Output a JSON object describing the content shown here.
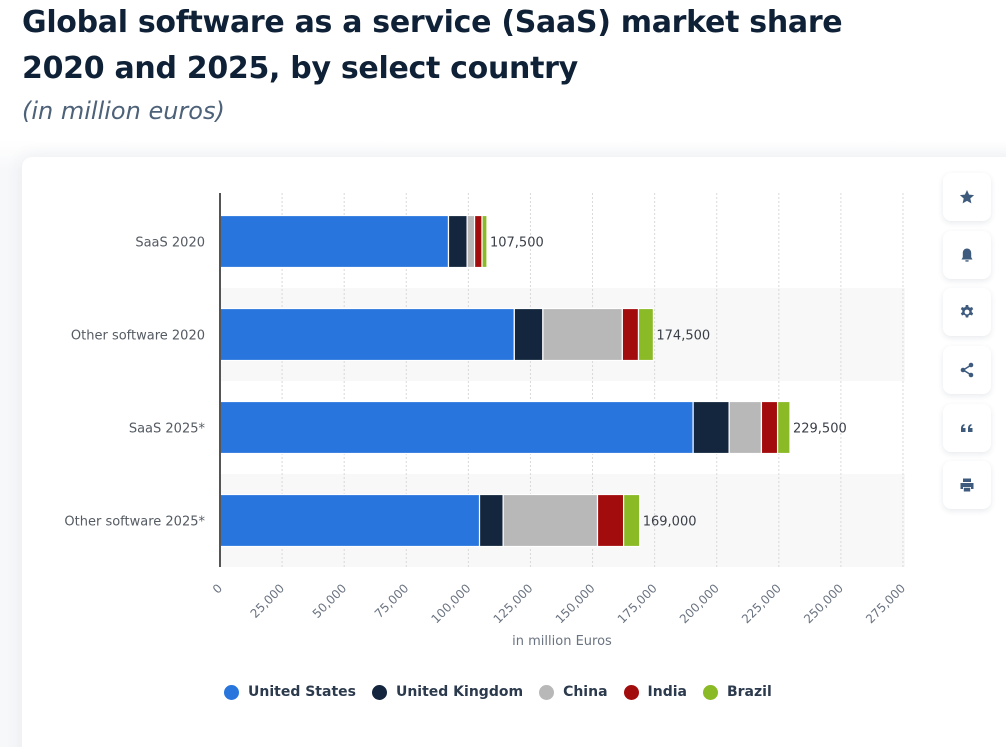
{
  "header": {
    "title": "Global software as a service (SaaS) market share 2020 and 2025, by select country",
    "subtitle": "(in million euros)"
  },
  "toolbar": {
    "buttons": [
      {
        "name": "favorite",
        "icon": "star-icon"
      },
      {
        "name": "notification",
        "icon": "bell-icon"
      },
      {
        "name": "settings",
        "icon": "gear-icon"
      },
      {
        "name": "share",
        "icon": "share-icon"
      },
      {
        "name": "cite",
        "icon": "quote-icon"
      },
      {
        "name": "print",
        "icon": "printer-icon"
      }
    ]
  },
  "chart_data": {
    "type": "bar",
    "orientation": "horizontal",
    "stacked": true,
    "title": "Global software as a service (SaaS) market share 2020 and 2025, by select country",
    "subtitle": "(in million euros)",
    "xlabel": "in million Euros",
    "ylabel": "",
    "categories": [
      "SaaS 2020",
      "Other software 2020",
      "SaaS 2025*",
      "Other software 2025*"
    ],
    "xlim": [
      0,
      275000
    ],
    "xticks": [
      0,
      25000,
      50000,
      75000,
      100000,
      125000,
      150000,
      175000,
      200000,
      225000,
      250000,
      275000
    ],
    "xtick_labels": [
      "0",
      "25,000",
      "50,000",
      "75,000",
      "100,000",
      "125,000",
      "150,000",
      "175,000",
      "200,000",
      "225,000",
      "250,000",
      "275,000"
    ],
    "grid": true,
    "legend_position": "bottom",
    "series": [
      {
        "name": "United States",
        "color": "#2876dd",
        "values": [
          92000,
          118500,
          190500,
          104500
        ]
      },
      {
        "name": "United Kingdom",
        "color": "#13263d",
        "values": [
          7500,
          11500,
          14500,
          9500
        ]
      },
      {
        "name": "China",
        "color": "#b8b8b8",
        "values": [
          3000,
          32000,
          13000,
          38000
        ]
      },
      {
        "name": "India",
        "color": "#a30c0d",
        "values": [
          3000,
          6500,
          6500,
          10500
        ]
      },
      {
        "name": "Brazil",
        "color": "#8aba26",
        "values": [
          2000,
          6000,
          5000,
          6500
        ]
      }
    ],
    "totals": [
      107500,
      174500,
      229500,
      169000
    ],
    "total_labels": [
      "107,500",
      "174,500",
      "229,500",
      "169,000"
    ]
  }
}
